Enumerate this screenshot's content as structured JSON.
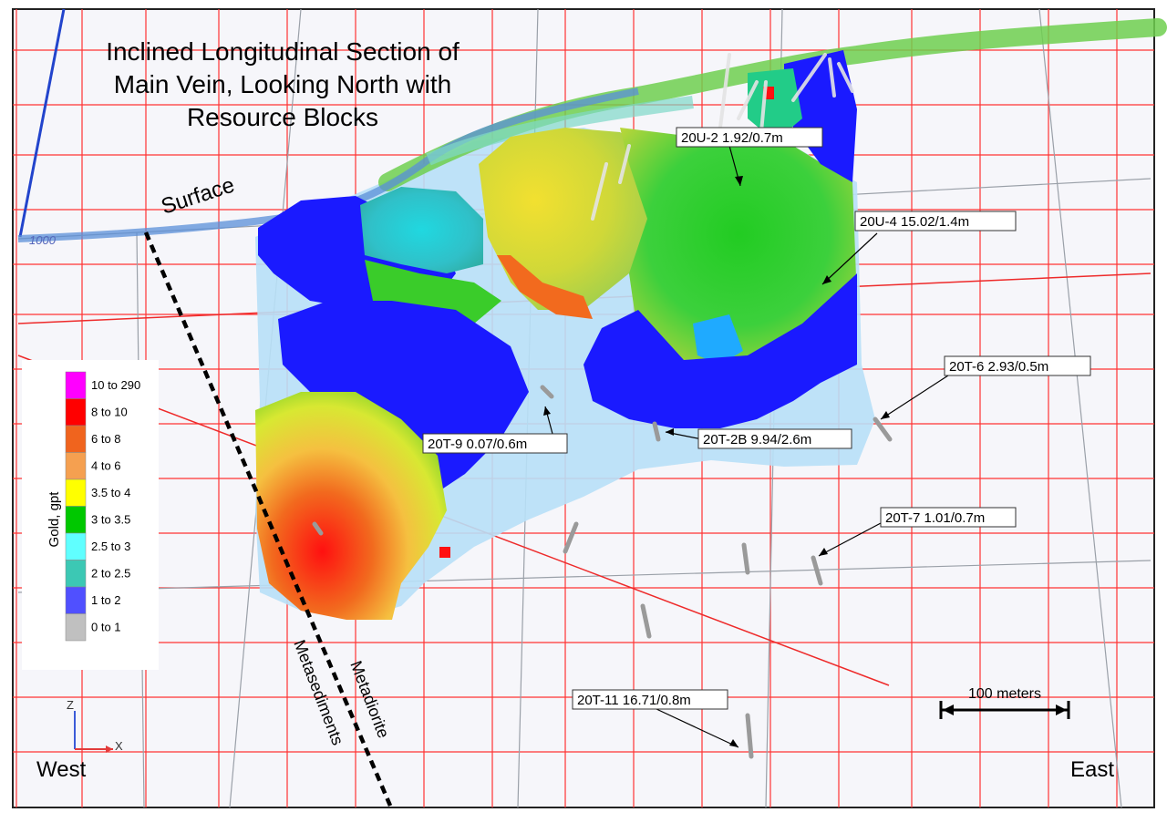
{
  "title": {
    "line1": "Inclined Longitudinal Section of",
    "line2": "Main Vein, Looking North with",
    "line3": "Resource Blocks"
  },
  "surface_label": "Surface",
  "elevation_label": "1000",
  "contact_labels": {
    "left": "Metasediments",
    "right": "Metadiorite"
  },
  "legend": {
    "axis_title": "Gold, gpt",
    "classes": [
      {
        "label": "10 to 290",
        "color": "#ff00ff"
      },
      {
        "label": "8 to 10",
        "color": "#ff0000"
      },
      {
        "label": "6 to 8",
        "color": "#f0641e"
      },
      {
        "label": "4 to 6",
        "color": "#f5a050"
      },
      {
        "label": "3.5 to 4",
        "color": "#ffff00"
      },
      {
        "label": "3 to 3.5",
        "color": "#00c800"
      },
      {
        "label": "2.5 to 3",
        "color": "#60ffff"
      },
      {
        "label": "2 to 2.5",
        "color": "#3cc8b4"
      },
      {
        "label": "1 to 2",
        "color": "#5050ff"
      },
      {
        "label": "0 to 1",
        "color": "#c0c0c0"
      }
    ]
  },
  "drillholes": [
    {
      "label": "20U-2 1.92/0.7m"
    },
    {
      "label": "20U-4 15.02/1.4m"
    },
    {
      "label": "20T-6 2.93/0.5m"
    },
    {
      "label": "20T-9 0.07/0.6m"
    },
    {
      "label": "20T-2B 9.94/2.6m"
    },
    {
      "label": "20T-7 1.01/0.7m"
    },
    {
      "label": "20T-11 16.71/0.8m"
    }
  ],
  "scale_bar": {
    "label": "100 meters"
  },
  "axes_triad": {
    "z": "Z",
    "x": "X"
  },
  "orientation": {
    "west": "West",
    "east": "East"
  },
  "colors": {
    "grid": "#ff3333",
    "surface_band": "#6fcf4f",
    "vein_envelope": "#b8e0f7",
    "blue_block": "#1a1aff"
  }
}
